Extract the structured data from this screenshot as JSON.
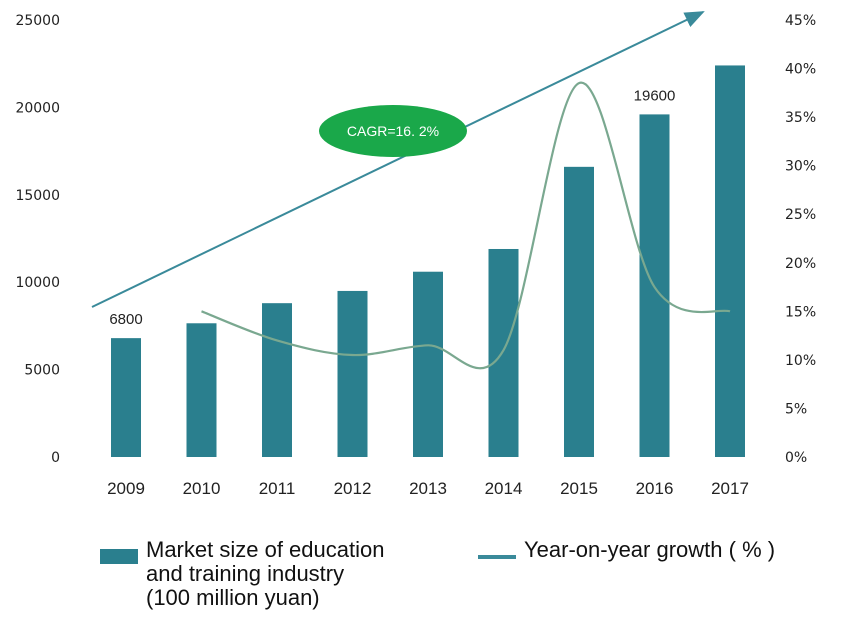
{
  "chart_data": {
    "type": "bar",
    "categories": [
      "2009",
      "2010",
      "2011",
      "2012",
      "2013",
      "2014",
      "2015",
      "2016",
      "2017"
    ],
    "series": [
      {
        "name": "Market size of education and training industry (100 million yuan)",
        "type": "bar",
        "axis": "left",
        "values": [
          6800,
          7650,
          8800,
          9500,
          10600,
          11900,
          16600,
          19600,
          22400
        ]
      },
      {
        "name": "Year-on-year growth ( % )",
        "type": "line",
        "axis": "right",
        "values": [
          null,
          15,
          12,
          10.5,
          11.5,
          11,
          38.5,
          17.5,
          15
        ]
      }
    ],
    "y_left": {
      "min": 0,
      "max": 25000,
      "ticks": [
        "0",
        "5000",
        "10000",
        "15000",
        "20000",
        "25000"
      ]
    },
    "y_right": {
      "min": 0,
      "max": 45,
      "ticks": [
        "0%",
        "5%",
        "10%",
        "15%",
        "20%",
        "25%",
        "30%",
        "35%",
        "40%",
        "45%"
      ]
    },
    "data_labels": [
      {
        "category": "2009",
        "text": "6800"
      },
      {
        "category": "2016",
        "text": "19600"
      }
    ],
    "annotation": {
      "text": "CAGR=16. 2%",
      "color": "#1aa84a"
    },
    "colors": {
      "bar": "#2a7f8e",
      "line": "#7aa890",
      "arrow": "#3a8a9a"
    },
    "legend": {
      "bar_label_lines": [
        "Market size of education",
        "and training industry",
        "(100 million yuan)"
      ],
      "line_label": "Year-on-year growth ( % )",
      "position": "bottom"
    }
  }
}
